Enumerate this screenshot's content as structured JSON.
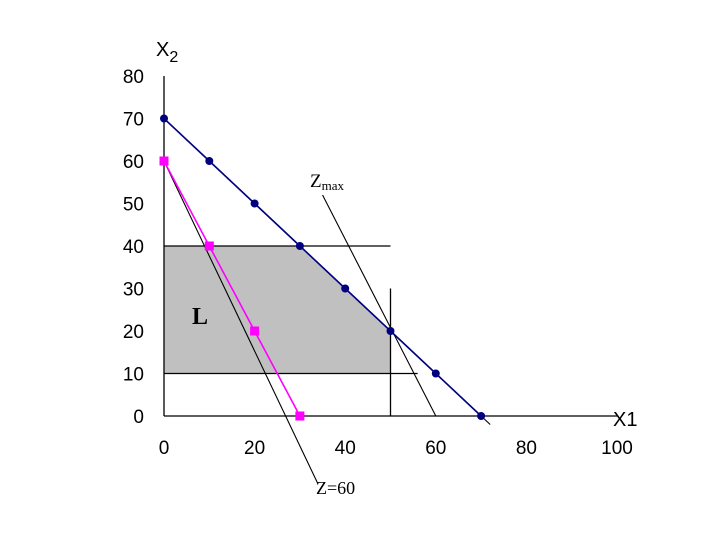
{
  "chart_data": {
    "type": "line",
    "xlabel": "X1",
    "ylabel_main": "X",
    "ylabel_sub": "2",
    "xlim": [
      0,
      100
    ],
    "ylim": [
      0,
      80
    ],
    "x_ticks": [
      "0",
      "20",
      "40",
      "60",
      "80",
      "100"
    ],
    "y_ticks": [
      "0",
      "10",
      "20",
      "30",
      "40",
      "50",
      "60",
      "70",
      "80"
    ],
    "grid": false,
    "feasible_region": {
      "label": "L",
      "fill": "#c0c0c0",
      "vertices": [
        [
          0,
          10
        ],
        [
          0,
          40
        ],
        [
          30,
          40
        ],
        [
          50,
          20
        ],
        [
          50,
          10
        ]
      ]
    },
    "constraint_lines": [
      {
        "from": [
          0,
          40
        ],
        "to": [
          50,
          40
        ]
      },
      {
        "from": [
          0,
          10
        ],
        "to": [
          56,
          10
        ]
      },
      {
        "from": [
          50,
          0
        ],
        "to": [
          50,
          30
        ]
      }
    ],
    "series": [
      {
        "color": "#000080",
        "marker": "circle",
        "line_from": [
          0,
          70
        ],
        "line_to": [
          72,
          -2
        ],
        "points": [
          [
            0,
            70
          ],
          [
            10,
            60
          ],
          [
            20,
            50
          ],
          [
            30,
            40
          ],
          [
            40,
            30
          ],
          [
            50,
            20
          ],
          [
            60,
            10
          ],
          [
            70,
            0
          ]
        ]
      },
      {
        "color": "#ff00ff",
        "marker": "square",
        "points": [
          [
            0,
            60
          ],
          [
            10,
            40
          ],
          [
            20,
            20
          ],
          [
            30,
            0
          ]
        ]
      }
    ],
    "objective_lines": [
      {
        "from": [
          0,
          60
        ],
        "to": [
          34,
          -16
        ]
      },
      {
        "from": [
          35,
          52
        ],
        "to": [
          60,
          0
        ]
      }
    ],
    "annotations": {
      "zmax_main": "Z",
      "zmax_sub": "max",
      "z60": "Z=60"
    }
  }
}
